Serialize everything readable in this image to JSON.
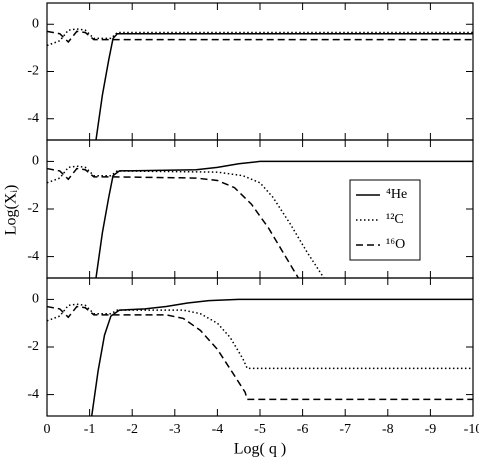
{
  "chart_data": [
    {
      "type": "line",
      "xlim": [
        0,
        -10
      ],
      "ylim": [
        -4.9,
        0.9
      ],
      "yticks": [
        0,
        -2,
        -4
      ],
      "series": [
        {
          "name": "⁴He",
          "color": "#000000",
          "linestyle": "solid",
          "x": [
            -1.15,
            -1.3,
            -1.45,
            -1.55,
            -1.65,
            -10
          ],
          "values": [
            -4.9,
            -3,
            -1.5,
            -0.6,
            -0.4,
            -0.4
          ]
        },
        {
          "name": "¹²C",
          "color": "#000000",
          "linestyle": "dotted",
          "x": [
            0,
            -0.3,
            -0.5,
            -0.7,
            -0.9,
            -1.1,
            -1.5,
            -1.65,
            -10
          ],
          "values": [
            -0.9,
            -0.7,
            -0.25,
            -0.2,
            -0.25,
            -0.6,
            -0.6,
            -0.35,
            -0.35
          ]
        },
        {
          "name": "¹⁶O",
          "color": "#000000",
          "linestyle": "dashed",
          "x": [
            0,
            -0.3,
            -0.5,
            -0.7,
            -0.9,
            -1.1,
            -1.65,
            -10
          ],
          "values": [
            -0.3,
            -0.4,
            -0.75,
            -0.3,
            -0.35,
            -0.65,
            -0.65,
            -0.65
          ]
        }
      ]
    },
    {
      "type": "line",
      "xlim": [
        0,
        -10
      ],
      "ylim": [
        -4.9,
        0.9
      ],
      "yticks": [
        0,
        -2,
        -4
      ],
      "ylabel": "Log(Xᵢ)",
      "legend": "center right",
      "series": [
        {
          "name": "⁴He",
          "color": "#000000",
          "linestyle": "solid",
          "x": [
            -1.15,
            -1.3,
            -1.45,
            -1.55,
            -1.7,
            -3.5,
            -4,
            -4.5,
            -5,
            -10
          ],
          "values": [
            -4.9,
            -3,
            -1.5,
            -0.6,
            -0.4,
            -0.35,
            -0.25,
            -0.1,
            0,
            0
          ]
        },
        {
          "name": "¹²C",
          "color": "#000000",
          "linestyle": "dotted",
          "x": [
            0,
            -0.3,
            -0.5,
            -0.7,
            -0.9,
            -1.1,
            -1.5,
            -1.65,
            -4,
            -4.6,
            -5,
            -5.3,
            -5.7,
            -6.1,
            -6.5
          ],
          "values": [
            -0.9,
            -0.7,
            -0.25,
            -0.2,
            -0.25,
            -0.6,
            -0.6,
            -0.4,
            -0.45,
            -0.6,
            -0.9,
            -1.5,
            -2.6,
            -3.8,
            -4.9
          ]
        },
        {
          "name": "¹⁶O",
          "color": "#000000",
          "linestyle": "dashed",
          "x": [
            0,
            -0.3,
            -0.5,
            -0.7,
            -0.9,
            -1.1,
            -1.6,
            -3.5,
            -4,
            -4.4,
            -4.8,
            -5.2,
            -5.6,
            -5.9
          ],
          "values": [
            -0.3,
            -0.4,
            -0.75,
            -0.3,
            -0.35,
            -0.65,
            -0.65,
            -0.7,
            -0.8,
            -1.1,
            -1.8,
            -2.8,
            -4,
            -4.9
          ]
        }
      ]
    },
    {
      "type": "line",
      "xlim": [
        0,
        -10
      ],
      "ylim": [
        -4.9,
        0.9
      ],
      "yticks": [
        0,
        -2,
        -4
      ],
      "xticks": [
        0,
        -1,
        -2,
        -3,
        -4,
        -5,
        -6,
        -7,
        -8,
        -9,
        -10
      ],
      "xlabel": "Log( q )",
      "series": [
        {
          "name": "⁴He",
          "color": "#000000",
          "linestyle": "solid",
          "x": [
            -1.05,
            -1.2,
            -1.35,
            -1.5,
            -1.7,
            -2.3,
            -2.8,
            -3.3,
            -3.8,
            -4.5,
            -10
          ],
          "values": [
            -4.9,
            -3,
            -1.5,
            -0.7,
            -0.45,
            -0.4,
            -0.3,
            -0.15,
            -0.05,
            0,
            0
          ]
        },
        {
          "name": "¹²C",
          "color": "#000000",
          "linestyle": "dotted",
          "x": [
            0,
            -0.3,
            -0.5,
            -0.7,
            -0.9,
            -1.1,
            -1.5,
            -1.65,
            -3.2,
            -3.6,
            -4,
            -4.3,
            -4.6,
            -4.7,
            -10
          ],
          "values": [
            -0.9,
            -0.7,
            -0.25,
            -0.2,
            -0.25,
            -0.6,
            -0.6,
            -0.45,
            -0.45,
            -0.6,
            -1,
            -1.6,
            -2.5,
            -2.9,
            -2.9
          ]
        },
        {
          "name": "¹⁶O",
          "color": "#000000",
          "linestyle": "dashed",
          "x": [
            0,
            -0.3,
            -0.5,
            -0.7,
            -0.9,
            -1.1,
            -1.6,
            -2.8,
            -3.2,
            -3.6,
            -4,
            -4.4,
            -4.65,
            -4.7,
            -10
          ],
          "values": [
            -0.3,
            -0.4,
            -0.75,
            -0.3,
            -0.35,
            -0.65,
            -0.65,
            -0.65,
            -0.8,
            -1.3,
            -2.1,
            -3.2,
            -3.9,
            -4.2,
            -4.2
          ]
        }
      ]
    }
  ]
}
